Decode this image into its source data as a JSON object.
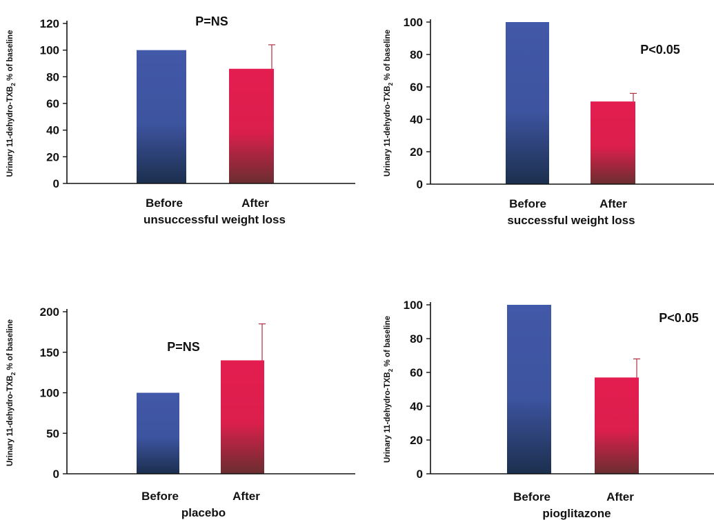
{
  "chart_data": [
    {
      "type": "bar",
      "categories": [
        "Before",
        "After"
      ],
      "values": [
        100,
        86
      ],
      "error": [
        0,
        18
      ],
      "colors": [
        "#3f57a6",
        "#e0204f"
      ],
      "ylabel": "Urinary 11-dehydro-TXB",
      "ylabel_sub": "2",
      "ylabel_tail": " % of baseline",
      "group_label": "unsuccessful weight loss",
      "annotation": "P=NS",
      "ylim": [
        0,
        120
      ],
      "yticks": [
        0,
        20,
        40,
        60,
        80,
        100,
        120
      ]
    },
    {
      "type": "bar",
      "categories": [
        "Before",
        "After"
      ],
      "values": [
        100,
        51
      ],
      "error": [
        0,
        5
      ],
      "colors": [
        "#3f57a6",
        "#e0204f"
      ],
      "ylabel": "Urinary 11-dehydro-TXB",
      "ylabel_sub": "2",
      "ylabel_tail": " % of baseline",
      "group_label": "successful weight loss",
      "annotation": "P<0.05",
      "ylim": [
        0,
        100
      ],
      "yticks": [
        0,
        20,
        40,
        60,
        80,
        100
      ]
    },
    {
      "type": "bar",
      "categories": [
        "Before",
        "After"
      ],
      "values": [
        100,
        140
      ],
      "error": [
        0,
        45
      ],
      "colors": [
        "#3f57a6",
        "#e0204f"
      ],
      "ylabel": "Urinary 11-dehydro-TXB",
      "ylabel_sub": "2",
      "ylabel_tail": " % of baseline",
      "group_label": "placebo",
      "annotation": "P=NS",
      "ylim": [
        0,
        200
      ],
      "yticks": [
        0,
        50,
        100,
        150,
        200
      ]
    },
    {
      "type": "bar",
      "categories": [
        "Before",
        "After"
      ],
      "values": [
        100,
        57
      ],
      "error": [
        0,
        11
      ],
      "colors": [
        "#3f57a6",
        "#e0204f"
      ],
      "ylabel": "Urinary 11-dehydro-TXB",
      "ylabel_sub": "2",
      "ylabel_tail": " % of baseline",
      "group_label": "pioglitazone",
      "annotation": "P<0.05",
      "ylim": [
        0,
        100
      ],
      "yticks": [
        0,
        20,
        40,
        60,
        80,
        100
      ]
    }
  ]
}
